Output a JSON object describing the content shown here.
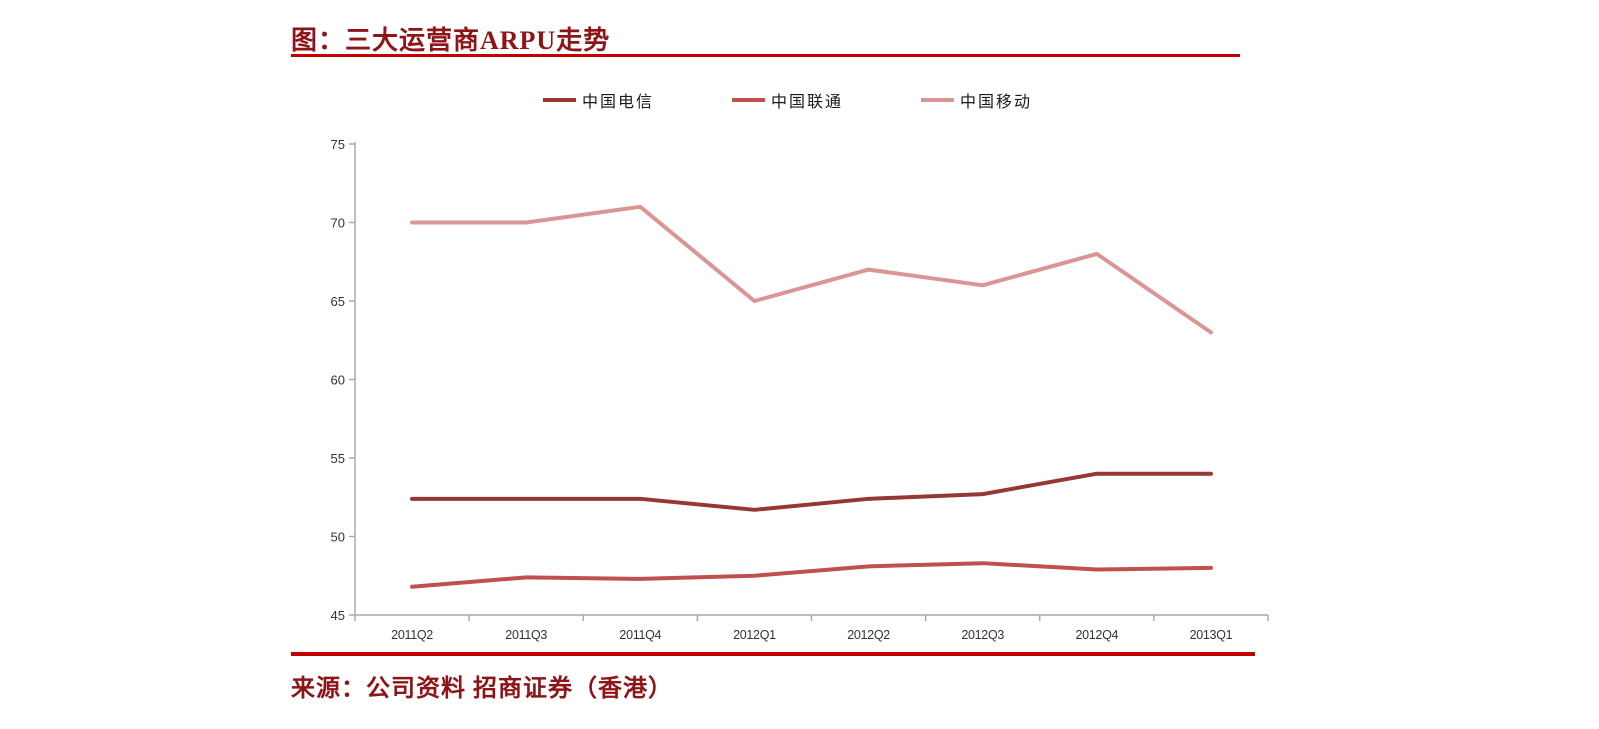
{
  "header": {
    "title": "图：三大运营商ARPU走势",
    "rule_color": "#c00000"
  },
  "legend": {
    "items": [
      {
        "label": "中国电信",
        "color": "#953735"
      },
      {
        "label": "中国联通",
        "color": "#c0504d"
      },
      {
        "label": "中国移动",
        "color": "#d99694"
      }
    ]
  },
  "chart_data": {
    "type": "line",
    "title": "图：三大运营商ARPU走势",
    "categories": [
      "2011Q2",
      "2011Q3",
      "2011Q4",
      "2012Q1",
      "2012Q2",
      "2012Q3",
      "2012Q4",
      "2013Q1"
    ],
    "series": [
      {
        "name": "中国电信",
        "color": "#953735",
        "values": [
          52.4,
          52.4,
          52.4,
          51.7,
          52.4,
          52.7,
          54.0,
          54.0
        ]
      },
      {
        "name": "中国联通",
        "color": "#c0504d",
        "values": [
          46.8,
          47.4,
          47.3,
          47.5,
          48.1,
          48.3,
          47.9,
          48.0
        ]
      },
      {
        "name": "中国移动",
        "color": "#d99694",
        "values": [
          70.0,
          70.0,
          71.0,
          65.0,
          67.0,
          66.0,
          68.0,
          63.0
        ]
      }
    ],
    "xlabel": "",
    "ylabel": "",
    "ylim": [
      45,
      75
    ],
    "ytick_step": 5,
    "grid": false,
    "legend_position": "top",
    "axis_color": "#a6a6a6"
  },
  "footer": {
    "source": "来源：公司资料 招商证券（香港）"
  }
}
